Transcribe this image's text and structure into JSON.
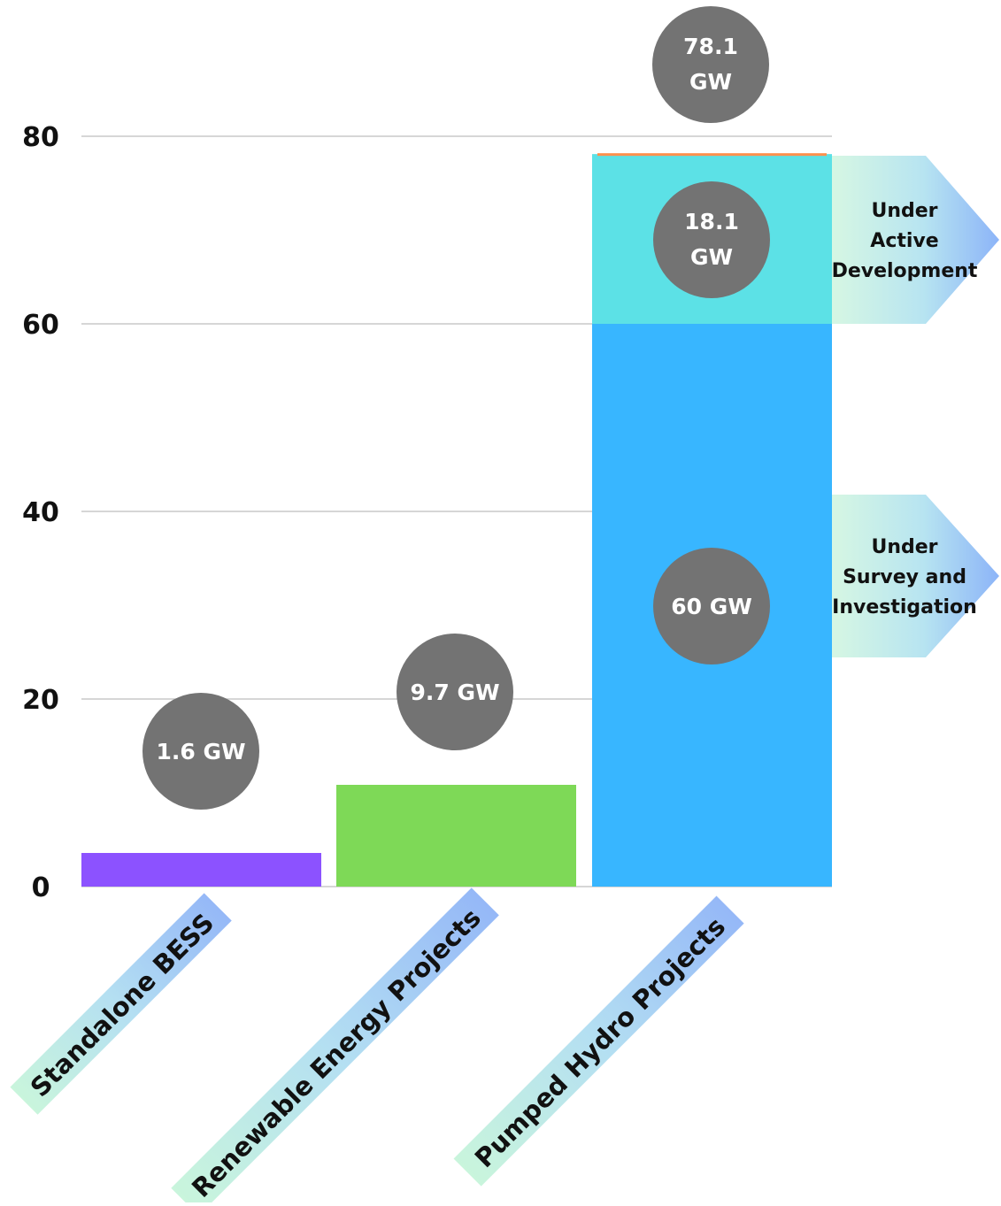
{
  "chart_data": {
    "type": "bar",
    "stacked": true,
    "categories": [
      "Standalone BESS",
      "Renewable Energy Projects",
      "Pumped Hydro Projects"
    ],
    "ylim": [
      0,
      80
    ],
    "yticks": [
      0,
      20,
      40,
      60,
      80
    ],
    "grid": true,
    "bars": [
      {
        "category": "Standalone BESS",
        "segments": [
          {
            "value": 1.6,
            "color": "#8c52ff"
          }
        ],
        "label": "1.6 GW"
      },
      {
        "category": "Renewable Energy Projects",
        "segments": [
          {
            "value": 9.7,
            "color": "#7ed957"
          }
        ],
        "label": "9.7 GW"
      },
      {
        "category": "Pumped Hydro Projects",
        "segments": [
          {
            "value": 60,
            "color": "#38b6ff",
            "label": "60 GW",
            "annotation": "Under Survey and Investigation"
          },
          {
            "value": 18.1,
            "color": "#5ce1e6",
            "label": "18.1 GW",
            "annotation": "Under Active Development"
          }
        ],
        "label": "78.1 GW"
      }
    ],
    "annotations": [
      {
        "lines": [
          "Under",
          "Active",
          "Development"
        ]
      },
      {
        "lines": [
          "Under",
          "Survey and",
          "Investigation"
        ]
      }
    ],
    "bubble_color": "#737373",
    "grid_color": "#c8c8c8",
    "top_stripe_color": "#ff914d"
  }
}
